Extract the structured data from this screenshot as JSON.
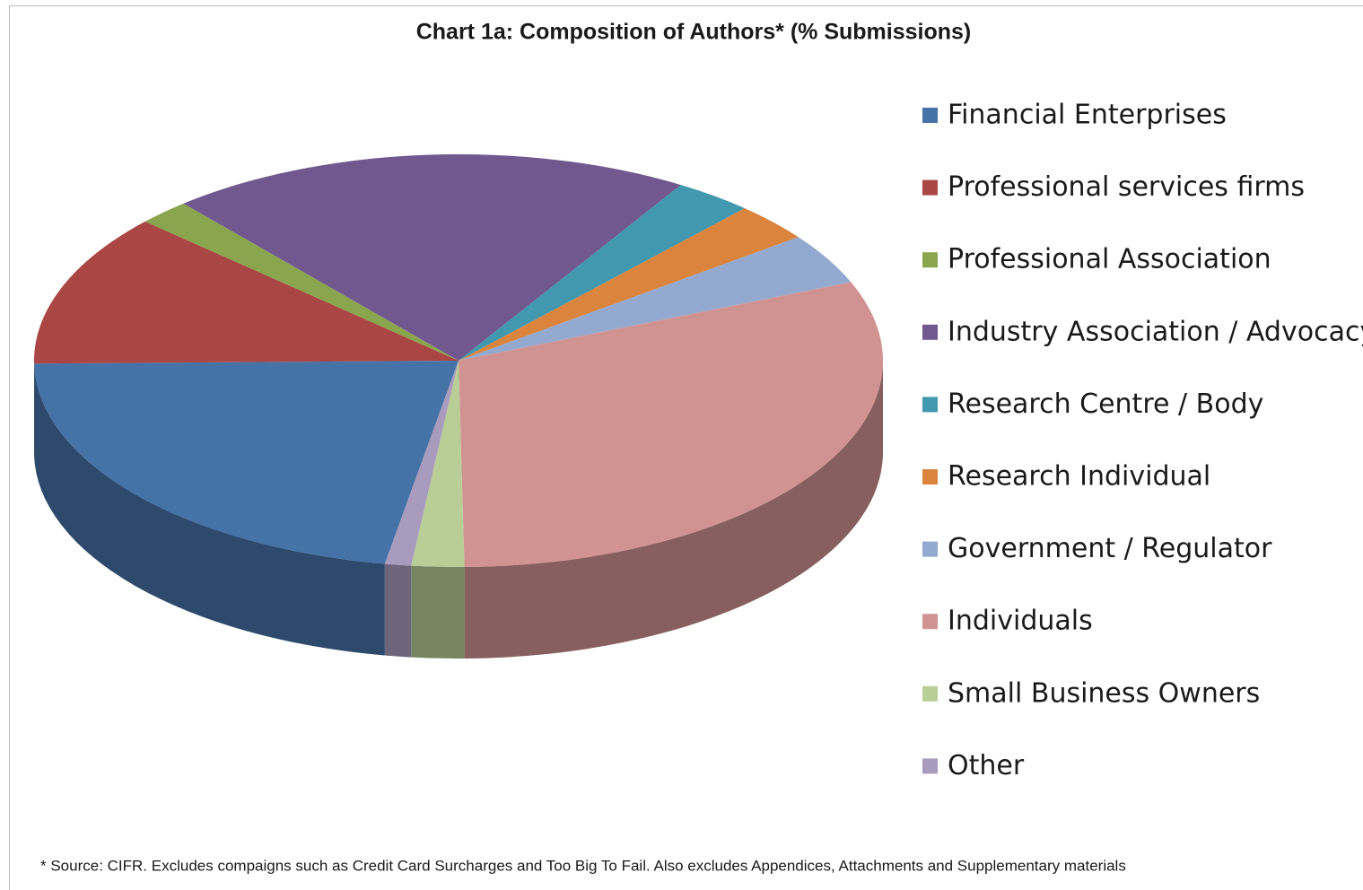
{
  "chart_data": {
    "type": "pie",
    "title": "Chart 1a: Composition of Authors* (% Submissions)",
    "categories": [
      "Financial Enterprises",
      "Professional services firms",
      "Professional Association",
      "Industry Association / Advocacy",
      "Research Centre / Body",
      "Research Individual",
      "Government / Regulator",
      "Individuals",
      "Small Business Owners",
      "Other"
    ],
    "values": [
      22,
      12,
      2,
      20,
      3,
      3,
      4,
      31,
      2,
      1
    ],
    "colors": [
      "#4572a7",
      "#aa4643",
      "#89a54e",
      "#71588f",
      "#4198af",
      "#db843d",
      "#93a9cf",
      "#d19392",
      "#b9cd96",
      "#a99bbd"
    ],
    "legend": "right",
    "footnote": "* Source: CIFR. Excludes compaigns such as Credit Card Surcharges and Too Big To Fail. Also excludes Appendices, Attachments and Supplementary materials"
  }
}
